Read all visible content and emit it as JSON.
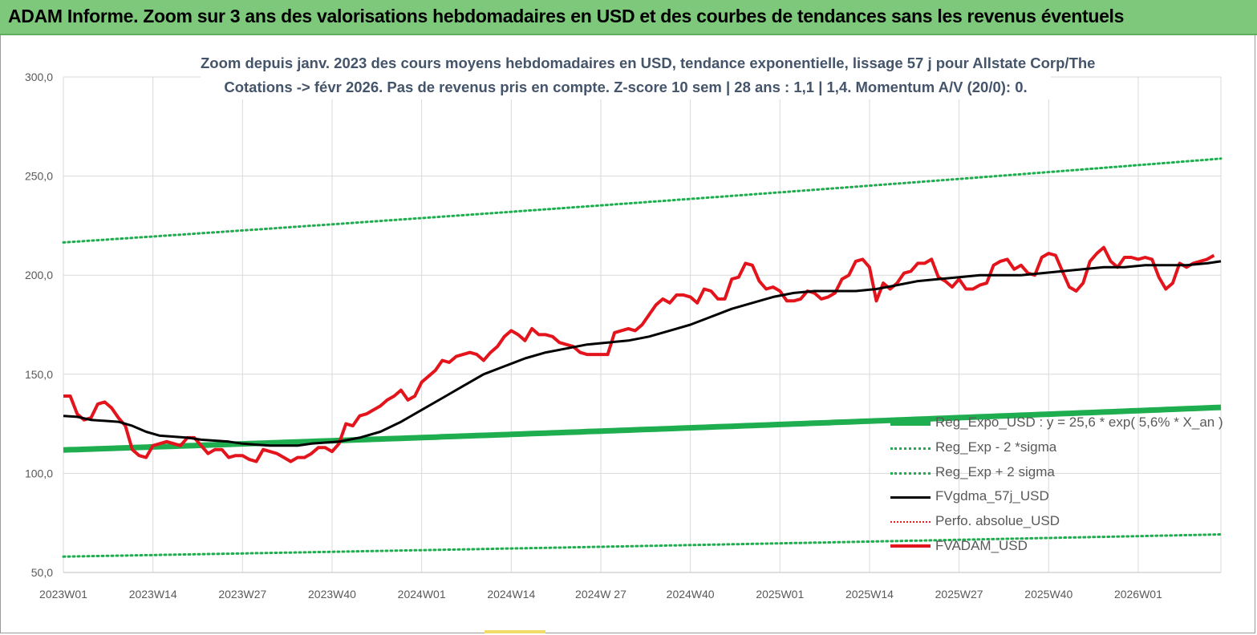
{
  "banner": {
    "title": "ADAM Informe. Zoom sur 3 ans des valorisations hebdomadaires en USD et des courbes de tendances sans les revenus éventuels"
  },
  "chart_data": {
    "type": "line",
    "title_line1": "Zoom depuis janv. 2023 des cours moyens hebdomadaires en USD, tendance exponentielle, lissage 57 j pour Allstate Corp/The",
    "title_line2": "Cotations -> févr 2026. Pas de revenus pris en compte. Z-score 10 sem | 28 ans : 1,1 | 1,4. Momentum A/V (20/0): 0.",
    "ylim": [
      50,
      300
    ],
    "y_ticks": [
      "300,0",
      "250,0",
      "200,0",
      "150,0",
      "100,0",
      "50,0"
    ],
    "y_tick_values": [
      300,
      250,
      200,
      150,
      100,
      50
    ],
    "x_ticks": [
      "2023W01",
      "2023W14",
      "2023W27",
      "2023W40",
      "2024W01",
      "2024W14",
      "2024W 27",
      "2024W40",
      "2025W01",
      "2025W14",
      "2025W27",
      "2025W40",
      "2026W01"
    ],
    "x_tick_weeks": [
      0,
      13,
      26,
      39,
      52,
      65,
      78,
      91,
      104,
      117,
      130,
      143,
      156
    ],
    "x_max_week": 168,
    "grid": "vertical",
    "legend_position": "right",
    "colors": {
      "reg_expo": "#1fae4f",
      "band": "#1fae4f",
      "fvgdma": "#000000",
      "perfo": "#e02020",
      "fvadam": "#e3141b",
      "gridline": "#d9d9d9",
      "axis_text": "#595959",
      "title_text": "#44546a",
      "banner": "#7dc87a"
    },
    "series": [
      {
        "name": "Reg_Expo_USD : y = 25,6 * exp( 5,6% *  X_an )",
        "style": "thick-green",
        "points": [
          [
            0,
            111.8
          ],
          [
            168,
            133.3
          ]
        ]
      },
      {
        "name": "Reg_Exp - 2 *sigma",
        "style": "dotted-green",
        "points": [
          [
            0,
            58.0
          ],
          [
            168,
            69.2
          ]
        ]
      },
      {
        "name": "Reg_Exp + 2 sigma",
        "style": "dotted-green",
        "points": [
          [
            0,
            216.5
          ],
          [
            168,
            258.8
          ]
        ]
      },
      {
        "name": "FVgdma_57j_USD",
        "style": "black",
        "points": [
          [
            0,
            129
          ],
          [
            2,
            128.5
          ],
          [
            4,
            127
          ],
          [
            8,
            126
          ],
          [
            10,
            124
          ],
          [
            12,
            121
          ],
          [
            14,
            119
          ],
          [
            18,
            118
          ],
          [
            20,
            117
          ],
          [
            24,
            116
          ],
          [
            26,
            115
          ],
          [
            28,
            114.5
          ],
          [
            30,
            114
          ],
          [
            34,
            114
          ],
          [
            36,
            115
          ],
          [
            40,
            116
          ],
          [
            43,
            118
          ],
          [
            46,
            121
          ],
          [
            49,
            126
          ],
          [
            52,
            132
          ],
          [
            55,
            138
          ],
          [
            58,
            144
          ],
          [
            61,
            150
          ],
          [
            64,
            154
          ],
          [
            67,
            158
          ],
          [
            70,
            161
          ],
          [
            73,
            163
          ],
          [
            76,
            165
          ],
          [
            79,
            166
          ],
          [
            82,
            167
          ],
          [
            85,
            169
          ],
          [
            88,
            172
          ],
          [
            91,
            175
          ],
          [
            94,
            179
          ],
          [
            97,
            183
          ],
          [
            100,
            186
          ],
          [
            103,
            189
          ],
          [
            106,
            191
          ],
          [
            109,
            192
          ],
          [
            112,
            192
          ],
          [
            115,
            192
          ],
          [
            118,
            193
          ],
          [
            121,
            195
          ],
          [
            124,
            197
          ],
          [
            127,
            198
          ],
          [
            130,
            199
          ],
          [
            133,
            200
          ],
          [
            136,
            200
          ],
          [
            139,
            200
          ],
          [
            142,
            201
          ],
          [
            145,
            202
          ],
          [
            148,
            203
          ],
          [
            151,
            204
          ],
          [
            154,
            204
          ],
          [
            157,
            205
          ],
          [
            160,
            205
          ],
          [
            163,
            205
          ],
          [
            166,
            206
          ],
          [
            168,
            207
          ]
        ]
      },
      {
        "name": "Perfo. absolue_USD",
        "style": "dotted-red",
        "points": []
      },
      {
        "name": "FVADAM_USD",
        "style": "thick-red",
        "points": [
          [
            0,
            139
          ],
          [
            1,
            139
          ],
          [
            2,
            130
          ],
          [
            3,
            127
          ],
          [
            4,
            128
          ],
          [
            5,
            135
          ],
          [
            6,
            136
          ],
          [
            7,
            133
          ],
          [
            8,
            128
          ],
          [
            9,
            124
          ],
          [
            10,
            112
          ],
          [
            11,
            109
          ],
          [
            12,
            108
          ],
          [
            13,
            114
          ],
          [
            14,
            115
          ],
          [
            15,
            116
          ],
          [
            16,
            115
          ],
          [
            17,
            114
          ],
          [
            18,
            118
          ],
          [
            19,
            118
          ],
          [
            20,
            114
          ],
          [
            21,
            110
          ],
          [
            22,
            112
          ],
          [
            23,
            112
          ],
          [
            24,
            108
          ],
          [
            25,
            109
          ],
          [
            26,
            109
          ],
          [
            27,
            107
          ],
          [
            28,
            106
          ],
          [
            29,
            112
          ],
          [
            30,
            111
          ],
          [
            31,
            110
          ],
          [
            32,
            108
          ],
          [
            33,
            106
          ],
          [
            34,
            108
          ],
          [
            35,
            108
          ],
          [
            36,
            110
          ],
          [
            37,
            113
          ],
          [
            38,
            113
          ],
          [
            39,
            111
          ],
          [
            40,
            115
          ],
          [
            41,
            125
          ],
          [
            42,
            124
          ],
          [
            43,
            129
          ],
          [
            44,
            130
          ],
          [
            45,
            132
          ],
          [
            46,
            134
          ],
          [
            47,
            137
          ],
          [
            48,
            139
          ],
          [
            49,
            142
          ],
          [
            50,
            137
          ],
          [
            51,
            139
          ],
          [
            52,
            146
          ],
          [
            53,
            149
          ],
          [
            54,
            152
          ],
          [
            55,
            157
          ],
          [
            56,
            156
          ],
          [
            57,
            159
          ],
          [
            58,
            160
          ],
          [
            59,
            161
          ],
          [
            60,
            160
          ],
          [
            61,
            157
          ],
          [
            62,
            161
          ],
          [
            63,
            164
          ],
          [
            64,
            169
          ],
          [
            65,
            172
          ],
          [
            66,
            170
          ],
          [
            67,
            167
          ],
          [
            68,
            173
          ],
          [
            69,
            170
          ],
          [
            70,
            170
          ],
          [
            71,
            169
          ],
          [
            72,
            166
          ],
          [
            73,
            165
          ],
          [
            74,
            164
          ],
          [
            75,
            161
          ],
          [
            76,
            160
          ],
          [
            77,
            160
          ],
          [
            78,
            160
          ],
          [
            79,
            160
          ],
          [
            80,
            171
          ],
          [
            81,
            172
          ],
          [
            82,
            173
          ],
          [
            83,
            172
          ],
          [
            84,
            175
          ],
          [
            85,
            180
          ],
          [
            86,
            185
          ],
          [
            87,
            188
          ],
          [
            88,
            186
          ],
          [
            89,
            190
          ],
          [
            90,
            190
          ],
          [
            91,
            189
          ],
          [
            92,
            186
          ],
          [
            93,
            193
          ],
          [
            94,
            192
          ],
          [
            95,
            188
          ],
          [
            96,
            188
          ],
          [
            97,
            198
          ],
          [
            98,
            199
          ],
          [
            99,
            206
          ],
          [
            100,
            205
          ],
          [
            101,
            197
          ],
          [
            102,
            193
          ],
          [
            103,
            194
          ],
          [
            104,
            192
          ],
          [
            105,
            187
          ],
          [
            106,
            187
          ],
          [
            107,
            188
          ],
          [
            108,
            192
          ],
          [
            109,
            191
          ],
          [
            110,
            188
          ],
          [
            111,
            189
          ],
          [
            112,
            191
          ],
          [
            113,
            198
          ],
          [
            114,
            200
          ],
          [
            115,
            207
          ],
          [
            116,
            208
          ],
          [
            117,
            204
          ],
          [
            118,
            187
          ],
          [
            119,
            196
          ],
          [
            120,
            193
          ],
          [
            121,
            196
          ],
          [
            122,
            201
          ],
          [
            123,
            202
          ],
          [
            124,
            206
          ],
          [
            125,
            206
          ],
          [
            126,
            208
          ],
          [
            127,
            199
          ],
          [
            128,
            197
          ],
          [
            129,
            194
          ],
          [
            130,
            198
          ],
          [
            131,
            193
          ],
          [
            132,
            193
          ],
          [
            133,
            195
          ],
          [
            134,
            196
          ],
          [
            135,
            205
          ],
          [
            136,
            207
          ],
          [
            137,
            208
          ],
          [
            138,
            203
          ],
          [
            139,
            205
          ],
          [
            140,
            201
          ],
          [
            141,
            200
          ],
          [
            142,
            209
          ],
          [
            143,
            211
          ],
          [
            144,
            210
          ],
          [
            145,
            202
          ],
          [
            146,
            194
          ],
          [
            147,
            192
          ],
          [
            148,
            196
          ],
          [
            149,
            207
          ],
          [
            150,
            211
          ],
          [
            151,
            214
          ],
          [
            152,
            207
          ],
          [
            153,
            204
          ],
          [
            154,
            209
          ],
          [
            155,
            209
          ],
          [
            156,
            208
          ],
          [
            157,
            209
          ],
          [
            158,
            208
          ],
          [
            159,
            199
          ],
          [
            160,
            193
          ],
          [
            161,
            196
          ],
          [
            162,
            206
          ],
          [
            163,
            204
          ],
          [
            164,
            206
          ],
          [
            165,
            207
          ],
          [
            166,
            208
          ],
          [
            167,
            210
          ]
        ]
      }
    ]
  }
}
